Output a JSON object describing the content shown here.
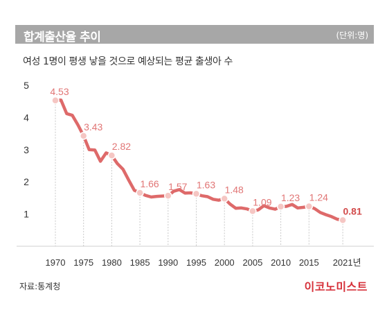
{
  "header": {
    "title": "합계출산율 추이",
    "unit": "(단위:명)"
  },
  "subtitle": "여성 1명이 평생 낳을 것으로 예상되는 평균 출생아 수",
  "footer": {
    "source": "자료:통계청",
    "brand": "이코노미스트"
  },
  "colors": {
    "line": "#de6a6a",
    "marker_fill": "#f5c6c3",
    "label": "#e17575",
    "last_label": "#d24b4b",
    "guide": "#c7c7c7"
  },
  "chart_data": {
    "type": "line",
    "title": "합계출산율 추이",
    "xlabel": "",
    "ylabel": "",
    "ylim": [
      0,
      5
    ],
    "yticks": [
      1,
      2,
      3,
      4,
      5
    ],
    "xticks": [
      {
        "year": 1970,
        "label": "1970"
      },
      {
        "year": 1975,
        "label": "1975"
      },
      {
        "year": 1980,
        "label": "1980"
      },
      {
        "year": 1985,
        "label": "1985"
      },
      {
        "year": 1990,
        "label": "1990"
      },
      {
        "year": 1995,
        "label": "1995"
      },
      {
        "year": 2000,
        "label": "2000"
      },
      {
        "year": 2005,
        "label": "2005"
      },
      {
        "year": 2010,
        "label": "2010"
      },
      {
        "year": 2015,
        "label": "2015"
      },
      {
        "year": 2021,
        "label": "2021년"
      }
    ],
    "grid": false,
    "series": [
      {
        "x": [
          1970,
          1971,
          1972,
          1973,
          1974,
          1975,
          1976,
          1977,
          1978,
          1979,
          1980,
          1981,
          1982,
          1983,
          1984,
          1985,
          1986,
          1987,
          1988,
          1989,
          1990,
          1991,
          1992,
          1993,
          1994,
          1995,
          1996,
          1997,
          1998,
          1999,
          2000,
          2001,
          2002,
          2003,
          2004,
          2005,
          2006,
          2007,
          2008,
          2009,
          2010,
          2011,
          2012,
          2013,
          2014,
          2015,
          2016,
          2017,
          2018,
          2019,
          2020,
          2021
        ],
        "y": [
          4.53,
          4.54,
          4.12,
          4.07,
          3.77,
          3.43,
          3.0,
          2.99,
          2.64,
          2.9,
          2.82,
          2.57,
          2.39,
          2.06,
          1.74,
          1.66,
          1.58,
          1.53,
          1.55,
          1.56,
          1.57,
          1.71,
          1.76,
          1.65,
          1.66,
          1.63,
          1.57,
          1.54,
          1.46,
          1.43,
          1.48,
          1.31,
          1.18,
          1.19,
          1.16,
          1.09,
          1.13,
          1.26,
          1.19,
          1.15,
          1.23,
          1.24,
          1.3,
          1.19,
          1.21,
          1.24,
          1.17,
          1.05,
          0.98,
          0.92,
          0.84,
          0.81
        ]
      }
    ],
    "labeled_points": [
      {
        "year": 1970,
        "value": "4.53"
      },
      {
        "year": 1975,
        "value": "3.43"
      },
      {
        "year": 1980,
        "value": "2.82"
      },
      {
        "year": 1985,
        "value": "1.66"
      },
      {
        "year": 1990,
        "value": "1.57"
      },
      {
        "year": 1995,
        "value": "1.63"
      },
      {
        "year": 2000,
        "value": "1.48"
      },
      {
        "year": 2005,
        "value": "1.09"
      },
      {
        "year": 2010,
        "value": "1.23"
      },
      {
        "year": 2015,
        "value": "1.24"
      },
      {
        "year": 2021,
        "value": "0.81"
      }
    ]
  }
}
